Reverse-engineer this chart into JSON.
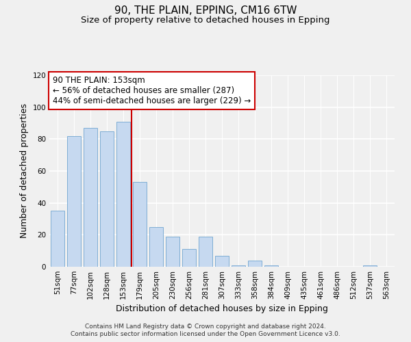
{
  "title": "90, THE PLAIN, EPPING, CM16 6TW",
  "subtitle": "Size of property relative to detached houses in Epping",
  "xlabel": "Distribution of detached houses by size in Epping",
  "ylabel": "Number of detached properties",
  "bar_labels": [
    "51sqm",
    "77sqm",
    "102sqm",
    "128sqm",
    "153sqm",
    "179sqm",
    "205sqm",
    "230sqm",
    "256sqm",
    "281sqm",
    "307sqm",
    "333sqm",
    "358sqm",
    "384sqm",
    "409sqm",
    "435sqm",
    "461sqm",
    "486sqm",
    "512sqm",
    "537sqm",
    "563sqm"
  ],
  "bar_values": [
    35,
    82,
    87,
    85,
    91,
    53,
    25,
    19,
    11,
    19,
    7,
    1,
    4,
    1,
    0,
    0,
    0,
    0,
    0,
    1,
    0
  ],
  "bar_color": "#c6d9f0",
  "bar_edge_color": "#7eadd4",
  "highlight_index": 4,
  "highlight_line_color": "#cc0000",
  "annotation_text": "90 THE PLAIN: 153sqm\n← 56% of detached houses are smaller (287)\n44% of semi-detached houses are larger (229) →",
  "annotation_box_color": "white",
  "annotation_box_edge_color": "#cc0000",
  "ylim": [
    0,
    120
  ],
  "yticks": [
    0,
    20,
    40,
    60,
    80,
    100,
    120
  ],
  "footer_line1": "Contains HM Land Registry data © Crown copyright and database right 2024.",
  "footer_line2": "Contains public sector information licensed under the Open Government Licence v3.0.",
  "background_color": "#f0f0f0",
  "grid_color": "#ffffff",
  "title_fontsize": 11,
  "subtitle_fontsize": 9.5,
  "axis_label_fontsize": 9,
  "tick_fontsize": 7.5,
  "annotation_fontsize": 8.5,
  "footer_fontsize": 6.5
}
